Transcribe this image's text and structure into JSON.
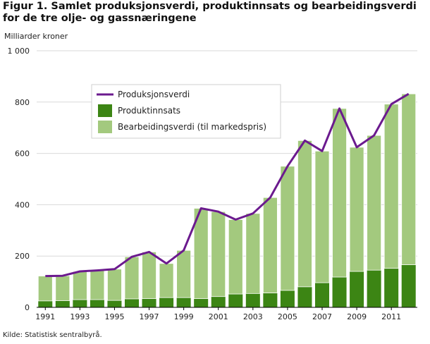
{
  "header": {
    "title": "Figur 1.  Samlet produksjonsverdi, produktinnsats og bearbeidingsverdi for de tre olje- og gassnæringene",
    "ylabel": "Milliarder kroner",
    "source": "Kilde: Statistisk sentralbyrå."
  },
  "legend": {
    "items": [
      "Produksjonsverdi",
      "Produktinnsats",
      "Bearbeidingsverdi (til markedspris)"
    ]
  },
  "chart_data": {
    "type": "bar",
    "stacked": true,
    "categories": [
      "1991",
      "1992",
      "1993",
      "1994",
      "1995",
      "1996",
      "1997",
      "1998",
      "1999",
      "2000",
      "2001",
      "2002",
      "2003",
      "2004",
      "2005",
      "2006",
      "2007",
      "2008",
      "2009",
      "2010",
      "2011",
      "2012"
    ],
    "x_tick_labels": [
      "1991",
      "1993",
      "1995",
      "1997",
      "1999",
      "2001",
      "2003",
      "2005",
      "2007",
      "2009",
      "2011"
    ],
    "y_tick_labels": [
      "0",
      "200",
      "400",
      "600",
      "800",
      "1 000"
    ],
    "ylim": [
      0,
      1000
    ],
    "ylabel": "Milliarder kroner",
    "grid": "horizontal",
    "legend_position": "upper-center",
    "series": [
      {
        "name": "Produktinnsats",
        "kind": "bar",
        "color": "#3c8514",
        "values": [
          25,
          26,
          30,
          30,
          27,
          33,
          34,
          38,
          38,
          34,
          42,
          52,
          54,
          56,
          66,
          80,
          96,
          118,
          140,
          145,
          152,
          166
        ]
      },
      {
        "name": "Bearbeidingsverdi (til markedspris)",
        "kind": "bar",
        "color": "#a3c97e",
        "values": [
          97,
          97,
          110,
          114,
          122,
          164,
          182,
          133,
          184,
          352,
          331,
          290,
          312,
          372,
          484,
          570,
          513,
          657,
          484,
          525,
          640,
          666
        ]
      },
      {
        "name": "Produksjonsverdi",
        "kind": "line",
        "color": "#6b1a8e",
        "values": [
          122,
          123,
          140,
          144,
          149,
          197,
          216,
          171,
          222,
          386,
          373,
          342,
          366,
          428,
          550,
          650,
          609,
          775,
          624,
          670,
          792,
          832
        ]
      }
    ]
  }
}
